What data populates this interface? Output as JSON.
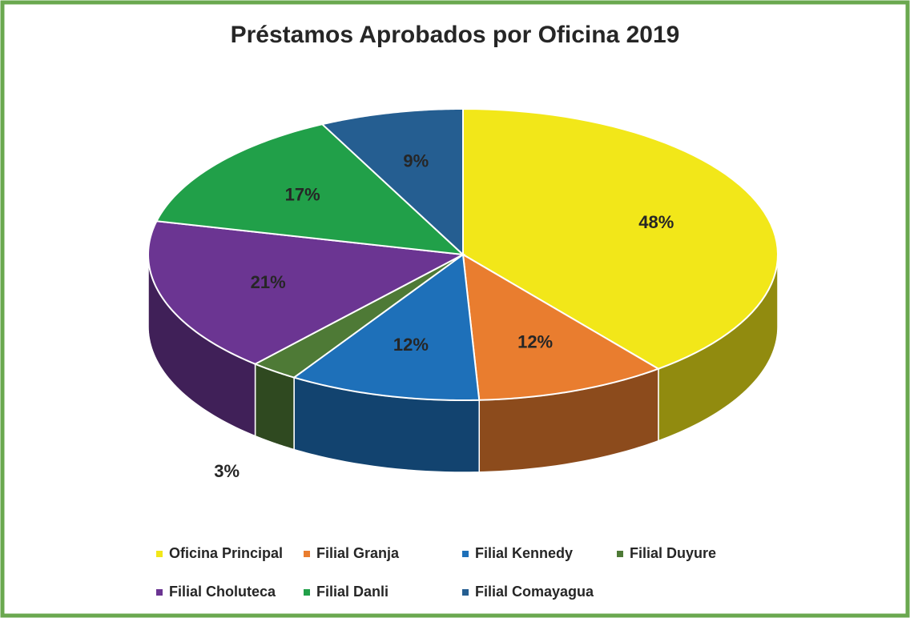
{
  "chart_data": {
    "type": "pie3d",
    "title": "Préstamos Aprobados por Oficina 2019",
    "categories": [
      "Oficina Principal",
      "Filial Granja",
      "Filial Kennedy",
      "Filial Duyure",
      "Filial Choluteca",
      "Filial Danli",
      "Filial Comayagua"
    ],
    "values": [
      48,
      12,
      12,
      3,
      21,
      17,
      9
    ],
    "value_labels": [
      "48%",
      "12%",
      "12%",
      "3%",
      "21%",
      "17%",
      "9%"
    ],
    "colors": [
      "#f2e719",
      "#e97d2f",
      "#1e70b9",
      "#4e7a36",
      "#6b3592",
      "#21a049",
      "#255e91"
    ],
    "legend": "bottom"
  }
}
